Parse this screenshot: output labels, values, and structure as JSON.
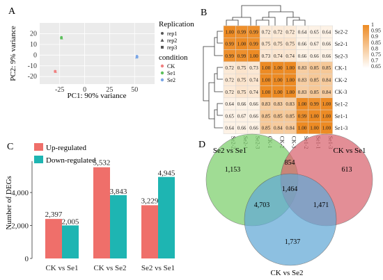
{
  "panels": {
    "a": {
      "letter": "A"
    },
    "b": {
      "letter": "B"
    },
    "c": {
      "letter": "C"
    },
    "d": {
      "letter": "D"
    }
  },
  "chart_data": [
    {
      "id": "pca",
      "type": "scatter",
      "xlabel": "PC1: 90% variance",
      "ylabel": "PC2: 9% variance",
      "xlim": [
        -45,
        70
      ],
      "ylim": [
        -27,
        30
      ],
      "xticks": [
        -25,
        0,
        25,
        50
      ],
      "yticks": [
        -20,
        -10,
        0,
        10,
        20
      ],
      "grid": true,
      "legend": {
        "replication_title": "Replication",
        "replication": [
          {
            "label": "rep1",
            "marker": "circle"
          },
          {
            "label": "rep2",
            "marker": "triangle"
          },
          {
            "label": "rep3",
            "marker": "square"
          }
        ],
        "condition_title": "condition",
        "condition": [
          {
            "label": "CK",
            "color": "#f08080"
          },
          {
            "label": "Se1",
            "color": "#5cbf5c"
          },
          {
            "label": "Se2",
            "color": "#7aa6e6"
          }
        ]
      },
      "points": [
        {
          "group": 0,
          "rep": 0,
          "x": -29.6,
          "y": -15.0
        },
        {
          "group": 0,
          "rep": 1,
          "x": -29.2,
          "y": -15.5
        },
        {
          "group": 0,
          "rep": 2,
          "x": -29.4,
          "y": -15.2
        },
        {
          "group": 1,
          "rep": 0,
          "x": -23.2,
          "y": 16.6
        },
        {
          "group": 1,
          "rep": 1,
          "x": -23.0,
          "y": 15.7
        },
        {
          "group": 1,
          "rep": 2,
          "x": -23.4,
          "y": 16.1
        },
        {
          "group": 2,
          "rep": 0,
          "x": 52.3,
          "y": -1.0
        },
        {
          "group": 2,
          "rep": 1,
          "x": 52.0,
          "y": -2.1
        },
        {
          "group": 2,
          "rep": 2,
          "x": 52.5,
          "y": -1.6
        }
      ]
    },
    {
      "id": "correlation",
      "type": "heatmap",
      "labels": [
        "Se2-2",
        "Se2-1",
        "Se2-3",
        "CK-1",
        "CK-2",
        "CK-3",
        "Se1-2",
        "Se1-1",
        "Se1-3"
      ],
      "values": [
        [
          1.0,
          0.99,
          0.99,
          0.72,
          0.72,
          0.72,
          0.64,
          0.65,
          0.64
        ],
        [
          0.99,
          1.0,
          0.99,
          0.75,
          0.75,
          0.75,
          0.66,
          0.67,
          0.66
        ],
        [
          0.99,
          0.99,
          1.0,
          0.73,
          0.74,
          0.74,
          0.66,
          0.66,
          0.66
        ],
        [
          0.72,
          0.75,
          0.73,
          1.0,
          1.0,
          1.0,
          0.83,
          0.85,
          0.85
        ],
        [
          0.72,
          0.75,
          0.74,
          1.0,
          1.0,
          1.0,
          0.83,
          0.85,
          0.84
        ],
        [
          0.72,
          0.75,
          0.74,
          1.0,
          1.0,
          1.0,
          0.83,
          0.85,
          0.84
        ],
        [
          0.64,
          0.66,
          0.66,
          0.83,
          0.83,
          0.83,
          1.0,
          0.99,
          1.0
        ],
        [
          0.65,
          0.67,
          0.66,
          0.85,
          0.85,
          0.85,
          0.99,
          1.0,
          1.0
        ],
        [
          0.64,
          0.66,
          0.66,
          0.85,
          0.84,
          0.84,
          1.0,
          1.0,
          1.0
        ]
      ],
      "scale": {
        "min": 0.65,
        "max": 1.0,
        "ticks": [
          "1",
          "0.95",
          "0.9",
          "0.85",
          "0.8",
          "0.75",
          "0.7",
          "0.65"
        ],
        "low_color": "#fdf2e6",
        "high_color": "#ed8b24"
      }
    },
    {
      "id": "degs",
      "type": "bar",
      "categories": [
        "CK vs Se1",
        "CK vs Se2",
        "Se2 vs Se1"
      ],
      "series": [
        {
          "name": "Up-regulated",
          "color": "#ef6f6a",
          "values": [
            2397,
            5532,
            3229
          ],
          "labels": [
            "2,397",
            "5,532",
            "3,229"
          ]
        },
        {
          "name": "Down-regulated",
          "color": "#1eb5b2",
          "values": [
            2005,
            3843,
            4945
          ],
          "labels": [
            "2,005",
            "3,843",
            "4,945"
          ]
        }
      ],
      "ylabel": "Number  of  DEGs",
      "ylim": [
        0,
        5900
      ],
      "yticks": [
        {
          "v": 0,
          "label": "0"
        },
        {
          "v": 2000,
          "label": "2,000"
        },
        {
          "v": 4000,
          "label": "4,000"
        }
      ],
      "legend_position": "top-left"
    },
    {
      "id": "venn",
      "type": "venn",
      "sets": [
        {
          "name": "Se2 vs Se1",
          "color": "#7ccf6c"
        },
        {
          "name": "CK vs Se1",
          "color": "#d9646e"
        },
        {
          "name": "CK vs Se2",
          "color": "#62a9d6"
        }
      ],
      "regions": {
        "only_se2_se1": "1,153",
        "se2_se1_and_ck_se1": "854",
        "only_ck_se1": "613",
        "all_three": "1,464",
        "se2_se1_and_ck_se2": "4,703",
        "ck_se1_and_ck_se2": "1,471",
        "only_ck_se2": "1,737"
      }
    }
  ]
}
